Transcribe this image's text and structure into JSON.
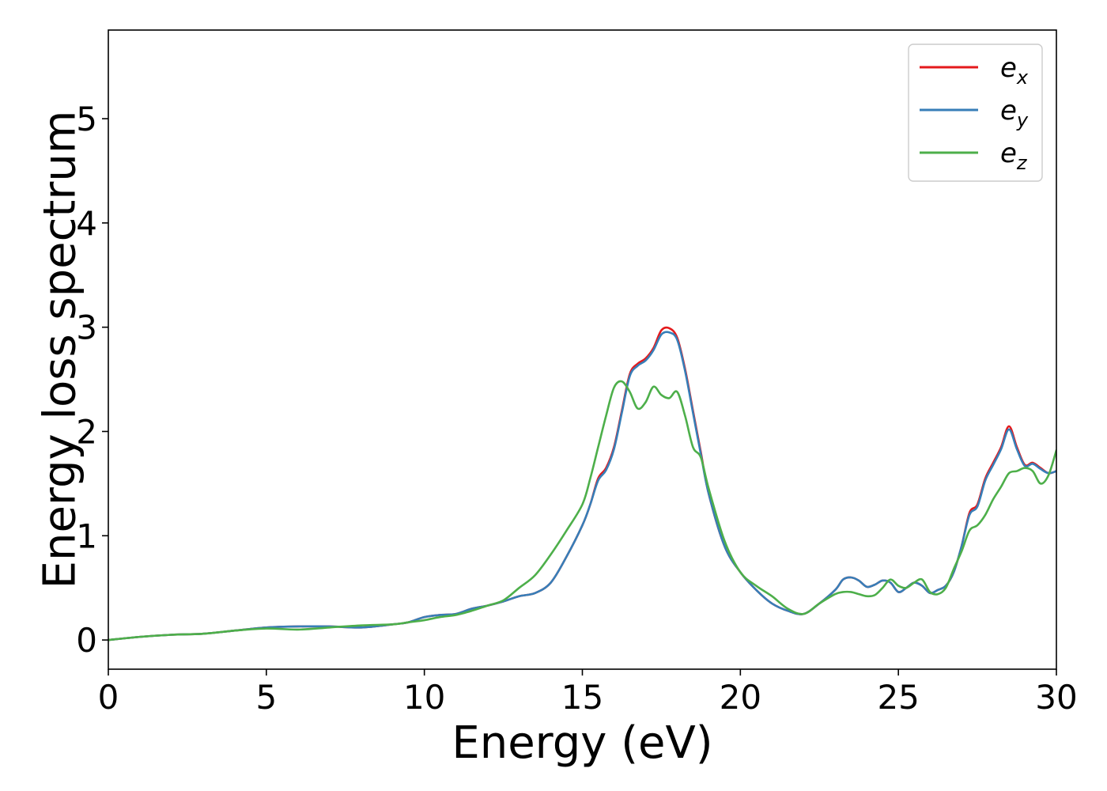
{
  "chart_data": {
    "type": "line",
    "title": "",
    "xlabel": "Energy (eV)",
    "ylabel": "Energy loss spectrum",
    "xlim": [
      0,
      30
    ],
    "ylim": [
      -0.28,
      5.85
    ],
    "xticks": [
      0,
      5,
      10,
      15,
      20,
      25,
      30
    ],
    "yticks": [
      0,
      1,
      2,
      3,
      4,
      5
    ],
    "grid": false,
    "legend_position": "top-right",
    "series": [
      {
        "name": "e_x",
        "legend_base": "e",
        "legend_sub": "x",
        "color": "#e41a1c",
        "x": [
          0,
          1,
          2,
          3,
          4,
          5,
          6,
          7,
          8,
          9,
          9.5,
          10,
          10.5,
          11,
          11.5,
          12,
          12.5,
          13,
          13.5,
          14,
          14.5,
          15,
          15.25,
          15.5,
          15.75,
          16,
          16.25,
          16.5,
          16.75,
          17,
          17.25,
          17.5,
          17.75,
          18,
          18.25,
          18.5,
          18.75,
          19,
          19.5,
          20,
          20.5,
          21,
          21.5,
          22,
          22.5,
          23,
          23.25,
          23.5,
          23.75,
          24,
          24.25,
          24.5,
          24.75,
          25,
          25.25,
          25.5,
          25.75,
          26,
          26.25,
          26.5,
          26.75,
          27,
          27.25,
          27.5,
          27.75,
          28,
          28.25,
          28.5,
          28.75,
          29,
          29.25,
          29.5,
          29.75,
          30
        ],
        "y": [
          0,
          0.03,
          0.05,
          0.06,
          0.09,
          0.12,
          0.13,
          0.13,
          0.12,
          0.15,
          0.17,
          0.22,
          0.24,
          0.25,
          0.3,
          0.33,
          0.37,
          0.42,
          0.45,
          0.55,
          0.8,
          1.1,
          1.3,
          1.55,
          1.65,
          1.85,
          2.2,
          2.55,
          2.65,
          2.7,
          2.8,
          2.97,
          2.99,
          2.9,
          2.6,
          2.2,
          1.8,
          1.4,
          0.9,
          0.65,
          0.48,
          0.35,
          0.28,
          0.25,
          0.35,
          0.48,
          0.58,
          0.6,
          0.57,
          0.51,
          0.53,
          0.57,
          0.55,
          0.46,
          0.5,
          0.55,
          0.52,
          0.45,
          0.48,
          0.52,
          0.65,
          0.9,
          1.22,
          1.3,
          1.55,
          1.7,
          1.85,
          2.05,
          1.85,
          1.68,
          1.7,
          1.65,
          1.6,
          1.62
        ]
      },
      {
        "name": "e_y",
        "legend_base": "e",
        "legend_sub": "y",
        "color": "#377eb8",
        "x": [
          0,
          1,
          2,
          3,
          4,
          5,
          6,
          7,
          8,
          9,
          9.5,
          10,
          10.5,
          11,
          11.5,
          12,
          12.5,
          13,
          13.5,
          14,
          14.5,
          15,
          15.25,
          15.5,
          15.75,
          16,
          16.25,
          16.5,
          16.75,
          17,
          17.25,
          17.5,
          17.75,
          18,
          18.25,
          18.5,
          18.75,
          19,
          19.5,
          20,
          20.5,
          21,
          21.5,
          22,
          22.5,
          23,
          23.25,
          23.5,
          23.75,
          24,
          24.25,
          24.5,
          24.75,
          25,
          25.25,
          25.5,
          25.75,
          26,
          26.25,
          26.5,
          26.75,
          27,
          27.25,
          27.5,
          27.75,
          28,
          28.25,
          28.5,
          28.75,
          29,
          29.25,
          29.5,
          29.75,
          30
        ],
        "y": [
          0,
          0.03,
          0.05,
          0.06,
          0.09,
          0.12,
          0.13,
          0.13,
          0.12,
          0.15,
          0.17,
          0.22,
          0.24,
          0.25,
          0.3,
          0.33,
          0.37,
          0.42,
          0.45,
          0.55,
          0.8,
          1.1,
          1.3,
          1.53,
          1.63,
          1.83,
          2.18,
          2.53,
          2.63,
          2.68,
          2.78,
          2.93,
          2.95,
          2.88,
          2.58,
          2.18,
          1.78,
          1.4,
          0.9,
          0.65,
          0.48,
          0.35,
          0.28,
          0.25,
          0.35,
          0.48,
          0.58,
          0.6,
          0.57,
          0.51,
          0.53,
          0.57,
          0.55,
          0.46,
          0.5,
          0.55,
          0.52,
          0.45,
          0.48,
          0.52,
          0.65,
          0.9,
          1.2,
          1.28,
          1.53,
          1.68,
          1.83,
          2.02,
          1.83,
          1.67,
          1.69,
          1.64,
          1.6,
          1.62
        ]
      },
      {
        "name": "e_z",
        "legend_base": "e",
        "legend_sub": "z",
        "color": "#4daf4a",
        "x": [
          0,
          1,
          2,
          3,
          4,
          5,
          6,
          7,
          8,
          9,
          9.5,
          10,
          10.5,
          11,
          11.5,
          12,
          12.5,
          13,
          13.5,
          14,
          14.5,
          15,
          15.25,
          15.5,
          15.75,
          16,
          16.25,
          16.5,
          16.75,
          17,
          17.25,
          17.5,
          17.75,
          18,
          18.25,
          18.5,
          18.75,
          19,
          19.5,
          20,
          20.5,
          21,
          21.5,
          22,
          22.5,
          23,
          23.25,
          23.5,
          23.75,
          24,
          24.25,
          24.5,
          24.75,
          25,
          25.25,
          25.5,
          25.75,
          26,
          26.25,
          26.5,
          26.75,
          27,
          27.25,
          27.5,
          27.75,
          28,
          28.25,
          28.5,
          28.75,
          29,
          29.25,
          29.5,
          29.75,
          30
        ],
        "y": [
          0,
          0.03,
          0.05,
          0.06,
          0.09,
          0.11,
          0.1,
          0.12,
          0.14,
          0.15,
          0.17,
          0.19,
          0.22,
          0.24,
          0.28,
          0.33,
          0.38,
          0.5,
          0.62,
          0.82,
          1.05,
          1.3,
          1.55,
          1.85,
          2.15,
          2.42,
          2.48,
          2.38,
          2.22,
          2.28,
          2.43,
          2.35,
          2.32,
          2.38,
          2.15,
          1.85,
          1.75,
          1.45,
          0.95,
          0.65,
          0.52,
          0.42,
          0.3,
          0.25,
          0.35,
          0.44,
          0.46,
          0.46,
          0.44,
          0.42,
          0.43,
          0.5,
          0.58,
          0.52,
          0.5,
          0.55,
          0.58,
          0.46,
          0.44,
          0.5,
          0.68,
          0.85,
          1.05,
          1.1,
          1.2,
          1.35,
          1.47,
          1.6,
          1.62,
          1.65,
          1.62,
          1.5,
          1.58,
          1.82
        ]
      }
    ]
  }
}
